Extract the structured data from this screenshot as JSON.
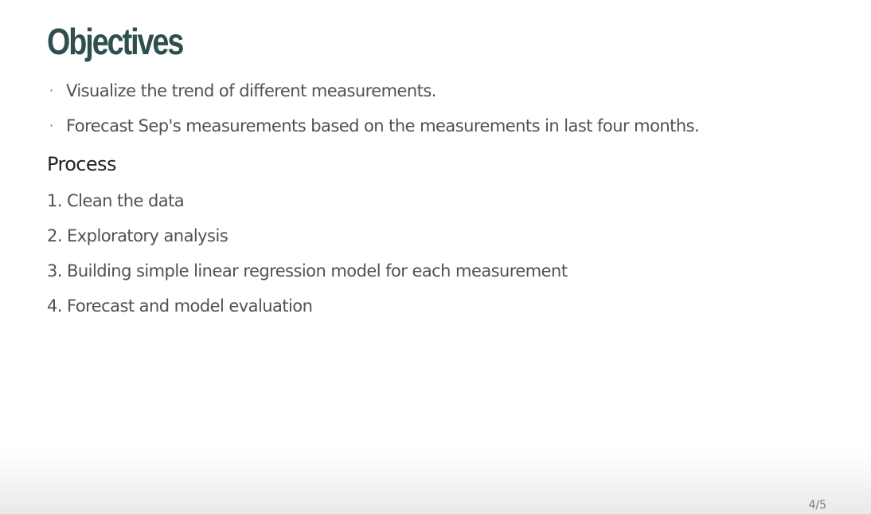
{
  "slide": {
    "title": "Objectives",
    "bullets": [
      "Visualize the trend of different measurements.",
      "Forecast Sep's measurements based on the measurements in last four months."
    ],
    "bullet_marker": "·",
    "section_heading": "Process",
    "steps": [
      "1. Clean the data",
      "2. Exploratory analysis",
      "3. Building simple linear regression model for each measurement",
      "4. Forecast and model evaluation"
    ],
    "page_number": "4/5"
  },
  "colors": {
    "title": "#2f4f4f",
    "body_text": "#515151",
    "heading": "#222222",
    "footer_gradient_end": "#e9e9e9"
  }
}
